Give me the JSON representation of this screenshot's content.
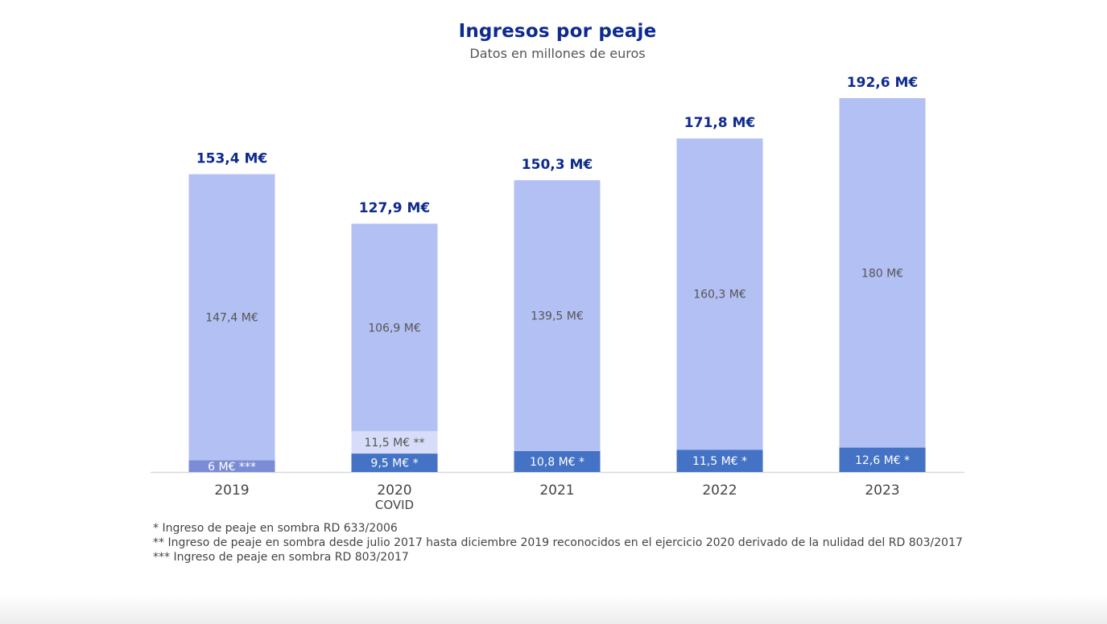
{
  "chart_data": {
    "type": "bar",
    "stacked": true,
    "title": "Ingresos por peaje",
    "subtitle": "Datos en millones de euros",
    "xlabel": "",
    "ylabel": "",
    "ylim": [
      0,
      192.6
    ],
    "grid": false,
    "categories": [
      "2019",
      "2020",
      "2021",
      "2022",
      "2023"
    ],
    "category_sublabels": [
      "",
      "COVID",
      "",
      "",
      ""
    ],
    "totals": [
      153.4,
      127.9,
      150.3,
      171.8,
      192.6
    ],
    "total_labels": [
      "153,4 M€",
      "127,9 M€",
      "150,3 M€",
      "171,8 M€",
      "192,6 M€"
    ],
    "segments": [
      [
        {
          "value": 6,
          "label": "6 M€ ***",
          "color": "#7b8cd4",
          "text_color": "#ffffff"
        },
        {
          "value": 147.4,
          "label": "147,4 M€",
          "color": "#b3c0f3",
          "text_color": "#555555"
        }
      ],
      [
        {
          "value": 9.5,
          "label": "9,5 M€ *",
          "color": "#4472c4",
          "text_color": "#ffffff"
        },
        {
          "value": 11.5,
          "label": "11,5 M€ **",
          "color": "#d7ddf8",
          "text_color": "#555555"
        },
        {
          "value": 106.9,
          "label": "106,9 M€",
          "color": "#b3c0f3",
          "text_color": "#555555"
        }
      ],
      [
        {
          "value": 10.8,
          "label": "10,8 M€ *",
          "color": "#4472c4",
          "text_color": "#ffffff"
        },
        {
          "value": 139.5,
          "label": "139,5 M€",
          "color": "#b3c0f3",
          "text_color": "#555555"
        }
      ],
      [
        {
          "value": 11.5,
          "label": "11,5 M€ *",
          "color": "#4472c4",
          "text_color": "#ffffff"
        },
        {
          "value": 160.3,
          "label": "160,3 M€",
          "color": "#b3c0f3",
          "text_color": "#555555"
        }
      ],
      [
        {
          "value": 12.6,
          "label": "12,6 M€ *",
          "color": "#4472c4",
          "text_color": "#ffffff"
        },
        {
          "value": 180,
          "label": "180 M€",
          "color": "#b3c0f3",
          "text_color": "#555555"
        }
      ]
    ],
    "colors": {
      "title": "#0e2a8c",
      "total_label": "#0e2a8c",
      "axis_line": "#d9d9d9",
      "tick_label": "#444444"
    }
  },
  "footnotes": [
    "* Ingreso de peaje en sombra RD 633/2006",
    "** Ingreso de peaje en sombra desde julio 2017 hasta diciembre 2019 reconocidos en el ejercicio 2020 derivado de la nulidad del RD 803/2017",
    "*** Ingreso de peaje en sombra RD 803/2017"
  ]
}
